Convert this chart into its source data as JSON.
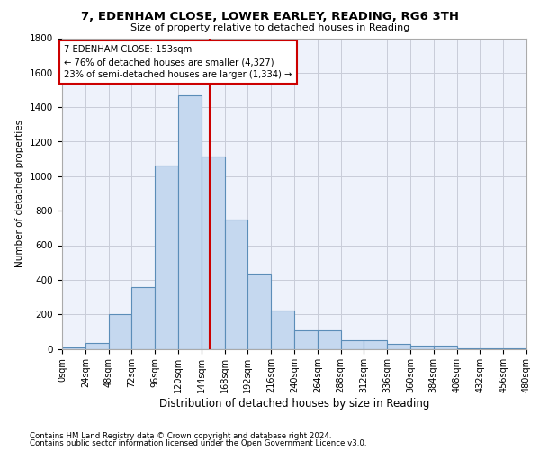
{
  "title": "7, EDENHAM CLOSE, LOWER EARLEY, READING, RG6 3TH",
  "subtitle": "Size of property relative to detached houses in Reading",
  "xlabel": "Distribution of detached houses by size in Reading",
  "ylabel": "Number of detached properties",
  "footnote1": "Contains HM Land Registry data © Crown copyright and database right 2024.",
  "footnote2": "Contains public sector information licensed under the Open Government Licence v3.0.",
  "annotation_line1": "7 EDENHAM CLOSE: 153sqm",
  "annotation_line2": "← 76% of detached houses are smaller (4,327)",
  "annotation_line3": "23% of semi-detached houses are larger (1,334) →",
  "property_size": 153,
  "bar_edges": [
    0,
    24,
    48,
    72,
    96,
    120,
    144,
    168,
    192,
    216,
    240,
    264,
    288,
    312,
    336,
    360,
    384,
    408,
    432,
    456,
    480
  ],
  "bar_heights": [
    10,
    35,
    200,
    355,
    1060,
    1470,
    1115,
    750,
    435,
    220,
    108,
    108,
    50,
    50,
    30,
    20,
    20,
    5,
    2,
    2
  ],
  "bar_color": "#c5d8ef",
  "bar_edge_color": "#5b8db8",
  "vline_color": "#cc0000",
  "vline_x": 153,
  "annotation_box_color": "#cc0000",
  "background_color": "#eef2fb",
  "grid_color": "#c8ccd8",
  "ylim": [
    0,
    1800
  ],
  "yticks": [
    0,
    200,
    400,
    600,
    800,
    1000,
    1200,
    1400,
    1600,
    1800
  ]
}
